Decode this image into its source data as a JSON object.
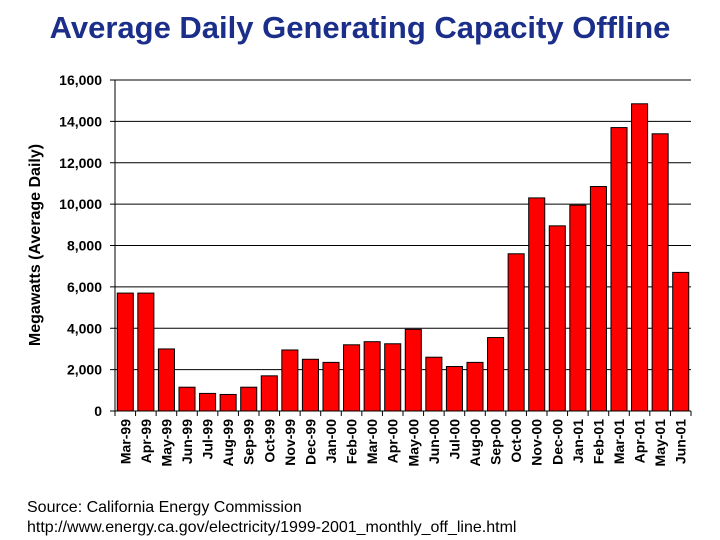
{
  "page": {
    "title": "Average Daily Generating Capacity Offline",
    "source_line1": "Source:  California Energy Commission",
    "source_line2": "http://www.energy.ca.gov/electricity/1999-2001_monthly_off_line.html"
  },
  "chart_data": {
    "type": "bar",
    "title": "Average Daily Generating Capacity Offline",
    "xlabel": "",
    "ylabel": "Megawatts (Average Daily)",
    "ylim": [
      0,
      16000
    ],
    "yticks": [
      0,
      2000,
      4000,
      6000,
      8000,
      10000,
      12000,
      14000,
      16000
    ],
    "ytick_labels": [
      "0",
      "2,000",
      "4,000",
      "6,000",
      "8,000",
      "10,000",
      "12,000",
      "14,000",
      "16,000"
    ],
    "grid": true,
    "bar_color": "#ff0000",
    "categories": [
      "Mar-99",
      "Apr-99",
      "May-99",
      "Jun-99",
      "Jul-99",
      "Aug-99",
      "Sep-99",
      "Oct-99",
      "Nov-99",
      "Dec-99",
      "Jan-00",
      "Feb-00",
      "Mar-00",
      "Apr-00",
      "May-00",
      "Jun-00",
      "Jul-00",
      "Aug-00",
      "Sep-00",
      "Oct-00",
      "Nov-00",
      "Dec-00",
      "Jan-01",
      "Feb-01",
      "Mar-01",
      "Apr-01",
      "May-01",
      "Jun-01"
    ],
    "values": [
      5700,
      5700,
      3000,
      1150,
      850,
      800,
      1150,
      1700,
      2950,
      2500,
      2350,
      3200,
      3350,
      3250,
      3950,
      2600,
      2150,
      2350,
      3550,
      7600,
      10300,
      8950,
      9950,
      10850,
      13700,
      14850,
      13400,
      6700
    ]
  }
}
